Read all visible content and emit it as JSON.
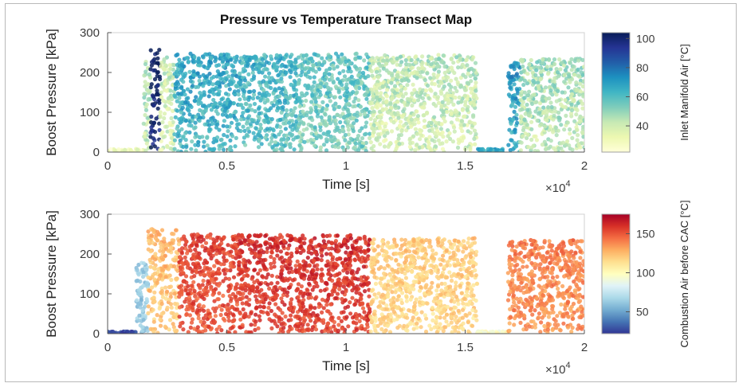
{
  "chart_data": [
    {
      "type": "scatter",
      "title": "Pressure vs Temperature Transect Map",
      "xlabel": "Time [s]",
      "ylabel": "Boost Pressure [kPa]",
      "x_multiplier": "×10",
      "x_multiplier_exp": "4",
      "xlim": [
        0,
        2
      ],
      "ylim": [
        0,
        300
      ],
      "xticks": [
        0,
        0.5,
        1,
        1.5,
        2
      ],
      "xtick_labels": [
        "0",
        "0.5",
        "1",
        "1.5",
        "2"
      ],
      "yticks": [
        0,
        100,
        200,
        300
      ],
      "ytick_labels": [
        "0",
        "100",
        "200",
        "300"
      ],
      "colorbar": {
        "label": "Inlet Manifold Air [°C]",
        "ticks": [
          40,
          60,
          80,
          100
        ],
        "tick_labels": [
          "40",
          "60",
          "80",
          "100"
        ],
        "range": [
          22,
          104
        ],
        "colormap": "YlGnBu",
        "colors": [
          "#ffffd9",
          "#edf8b1",
          "#c7e9b4",
          "#7fcdbb",
          "#41b6c4",
          "#1d91c0",
          "#225ea8",
          "#253494",
          "#081d58"
        ]
      },
      "segments": [
        {
          "x": [
            0.0,
            0.15
          ],
          "temp": 30,
          "pmax": 8
        },
        {
          "x": [
            0.15,
            0.18
          ],
          "temp": 40,
          "pmax": 230
        },
        {
          "x": [
            0.18,
            0.22
          ],
          "temp": 100,
          "pmax": 265
        },
        {
          "x": [
            0.22,
            0.28
          ],
          "temp": 36,
          "pmax": 240
        },
        {
          "x": [
            0.28,
            0.55
          ],
          "temp": 62,
          "pmax": 248
        },
        {
          "x": [
            0.55,
            0.8
          ],
          "temp": 58,
          "pmax": 245
        },
        {
          "x": [
            0.8,
            1.1
          ],
          "temp": 52,
          "pmax": 248
        },
        {
          "x": [
            1.1,
            1.55
          ],
          "temp": 38,
          "pmax": 245
        },
        {
          "x": [
            1.55,
            1.68
          ],
          "temp": 68,
          "pmax": 8
        },
        {
          "x": [
            1.68,
            1.73
          ],
          "temp": 65,
          "pmax": 225
        },
        {
          "x": [
            1.73,
            2.0
          ],
          "temp": 42,
          "pmax": 235
        }
      ]
    },
    {
      "type": "scatter",
      "title": "",
      "xlabel": "Time [s]",
      "ylabel": "Boost Pressure [kPa]",
      "x_multiplier": "×10",
      "x_multiplier_exp": "4",
      "xlim": [
        0,
        2
      ],
      "ylim": [
        0,
        300
      ],
      "xticks": [
        0,
        0.5,
        1,
        1.5,
        2
      ],
      "xtick_labels": [
        "0",
        "0.5",
        "1",
        "1.5",
        "2"
      ],
      "yticks": [
        0,
        100,
        200,
        300
      ],
      "ytick_labels": [
        "0",
        "100",
        "200",
        "300"
      ],
      "colorbar": {
        "label": "Combustion Air before CAC [°C]",
        "ticks": [
          50,
          100,
          150
        ],
        "tick_labels": [
          "50",
          "100",
          "150"
        ],
        "range": [
          22,
          175
        ],
        "colormap": "RdYlBu_r",
        "colors": [
          "#313695",
          "#4575b4",
          "#74add1",
          "#abd9e9",
          "#e0f3f8",
          "#ffffbf",
          "#fee090",
          "#fdae61",
          "#f46d43",
          "#d73027",
          "#a50026"
        ]
      },
      "segments": [
        {
          "x": [
            0.0,
            0.12
          ],
          "temp": 25,
          "pmax": 6
        },
        {
          "x": [
            0.12,
            0.17
          ],
          "temp": 60,
          "pmax": 180
        },
        {
          "x": [
            0.17,
            0.3
          ],
          "temp": 120,
          "pmax": 265
        },
        {
          "x": [
            0.3,
            0.55
          ],
          "temp": 150,
          "pmax": 250
        },
        {
          "x": [
            0.55,
            1.1
          ],
          "temp": 155,
          "pmax": 248
        },
        {
          "x": [
            1.1,
            1.55
          ],
          "temp": 115,
          "pmax": 240
        },
        {
          "x": [
            1.55,
            1.68
          ],
          "temp": 95,
          "pmax": 6
        },
        {
          "x": [
            1.68,
            2.0
          ],
          "temp": 135,
          "pmax": 235
        }
      ]
    }
  ]
}
